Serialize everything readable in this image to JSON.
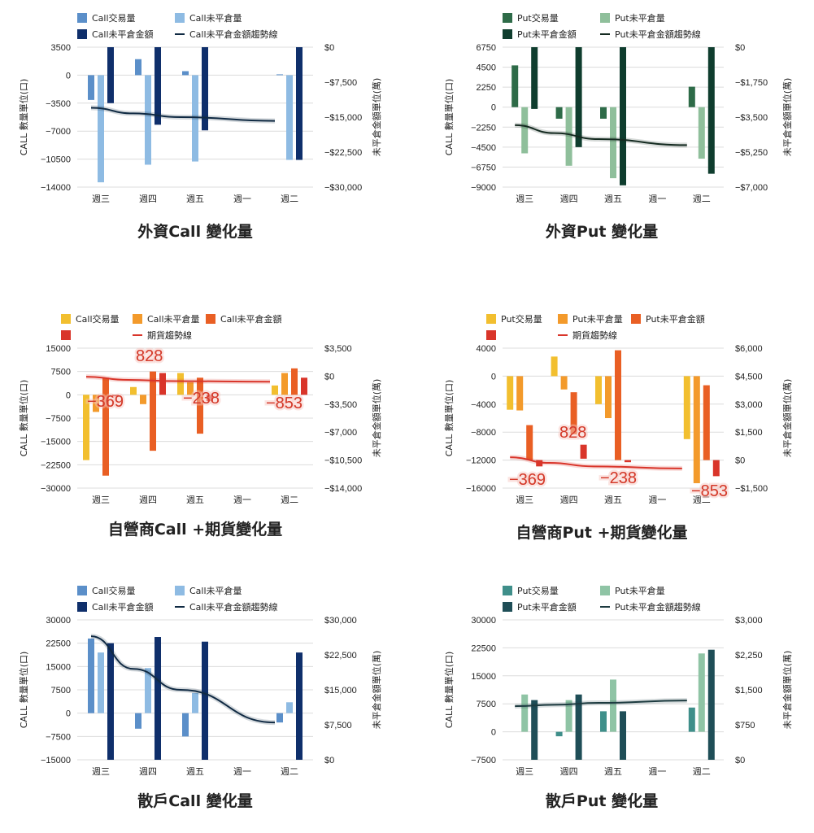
{
  "chart_data": [
    {
      "type": "bar",
      "title": "外資Call 變化量",
      "categories": [
        "週三",
        "週四",
        "週五",
        "週一",
        "週二"
      ],
      "ylabel": "CALL 數量單位(口)",
      "y2label": "未平倉金額單位(萬)",
      "ylim": [
        -14000,
        3500
      ],
      "yticks": [
        3500,
        0,
        -3500,
        -7000,
        -10500,
        -14000
      ],
      "yticklabels": [
        "3500",
        "0",
        "−3500",
        "−7000",
        "−10500",
        "−14000"
      ],
      "y2lim": [
        -30000,
        0
      ],
      "y2ticks": [
        0,
        -7500,
        -15000,
        -22500,
        -30000
      ],
      "y2ticklabels": [
        "$0",
        "−$7,500",
        "−$15,000",
        "−$22,500",
        "−$30,000"
      ],
      "legend": [
        "Call交易量",
        "Call未平倉量",
        "Call未平倉金額",
        "Call未平倉金額趨勢線"
      ],
      "series": [
        {
          "name": "Call交易量",
          "kind": "bar",
          "axis": "left",
          "color": "#5b8fc9",
          "values": [
            -3100,
            2000,
            500,
            null,
            100
          ]
        },
        {
          "name": "Call未平倉量",
          "kind": "bar",
          "axis": "left",
          "color": "#8ebbe3",
          "values": [
            -13400,
            -11200,
            -10800,
            null,
            -10600
          ]
        },
        {
          "name": "Call未平倉金額",
          "kind": "bar",
          "axis": "left",
          "color": "#0f2f6b",
          "values": [
            -3500,
            -6200,
            -6900,
            null,
            -10600
          ],
          "extend_top": true
        },
        {
          "name": "Call未平倉金額趨勢線",
          "kind": "trend",
          "axis": "right",
          "color": "#102a43",
          "values": [
            -13000,
            -14200,
            -15000,
            null,
            -15800
          ]
        }
      ]
    },
    {
      "type": "bar",
      "title": "外資Put 變化量",
      "categories": [
        "週三",
        "週四",
        "週五",
        "週一",
        "週二"
      ],
      "ylabel": "CALL 數量單位(口)",
      "y2label": "未平倉金額單位(萬)",
      "ylim": [
        -9000,
        6750
      ],
      "yticks": [
        6750,
        4500,
        2250,
        0,
        -2250,
        -4500,
        -6750,
        -9000
      ],
      "yticklabels": [
        "6750",
        "4500",
        "2250",
        "0",
        "−2250",
        "−4500",
        "−6750",
        "−9000"
      ],
      "y2lim": [
        -7000,
        0
      ],
      "y2ticks": [
        0,
        -1750,
        -3500,
        -5250,
        -7000
      ],
      "y2ticklabels": [
        "$0",
        "−$1,750",
        "−$3,500",
        "−$5,250",
        "−$7,000"
      ],
      "legend": [
        "Put交易量",
        "Put未平倉量",
        "Put未平倉金額",
        "Put未平倉金額趨勢線"
      ],
      "series": [
        {
          "name": "Put交易量",
          "kind": "bar",
          "axis": "left",
          "color": "#2e6b48",
          "values": [
            4700,
            -1300,
            -1300,
            null,
            2300
          ]
        },
        {
          "name": "Put未平倉量",
          "kind": "bar",
          "axis": "left",
          "color": "#8fbf9b",
          "values": [
            -5200,
            -6600,
            -8000,
            null,
            -5800
          ]
        },
        {
          "name": "Put未平倉金額",
          "kind": "bar",
          "axis": "left",
          "color": "#0f3d2e",
          "values": [
            -200,
            -4500,
            -8800,
            null,
            -7500
          ],
          "extend_top": true
        },
        {
          "name": "Put未平倉金額趨勢線",
          "kind": "trend",
          "axis": "right",
          "color": "#142a20",
          "values": [
            -3900,
            -4300,
            -4600,
            null,
            -4900
          ]
        }
      ]
    },
    {
      "type": "bar",
      "title": "自營商Call +期貨變化量",
      "categories": [
        "週三",
        "週四",
        "週五",
        "週一",
        "週二"
      ],
      "ylabel": "CALL 數量單位(口)",
      "y2label": "未平倉金額單位(萬)",
      "ylim": [
        -30000,
        15000
      ],
      "yticks": [
        15000,
        7500,
        0,
        -7500,
        -15000,
        -22500,
        -30000
      ],
      "yticklabels": [
        "15000",
        "7500",
        "0",
        "−7500",
        "−15000",
        "−22500",
        "−30000"
      ],
      "y2lim": [
        -14000,
        3500
      ],
      "y2ticks": [
        3500,
        0,
        -3500,
        -7000,
        -10500,
        -14000
      ],
      "y2ticklabels": [
        "$3,500",
        "$0",
        "−$3,500",
        "−$7,000",
        "−$10,500",
        "−$14,000"
      ],
      "legend": [
        "Call交易量",
        "Call未平倉量",
        "Call未平倉金額",
        "",
        "期貨趨勢線"
      ],
      "series": [
        {
          "name": "Call交易量",
          "kind": "bar",
          "axis": "left",
          "color": "#f2bf2f",
          "values": [
            -21000,
            2500,
            7000,
            null,
            3000
          ]
        },
        {
          "name": "Call未平倉量",
          "kind": "bar",
          "axis": "left",
          "color": "#f39a2b",
          "values": [
            -5500,
            -3000,
            4000,
            null,
            7000
          ]
        },
        {
          "name": "Call未平倉金額",
          "kind": "bar",
          "axis": "left",
          "color": "#e95f24",
          "values": [
            -26000,
            -18000,
            -12500,
            null,
            8500
          ],
          "top_values": [
            5500,
            7500,
            5500,
            null,
            null
          ]
        },
        {
          "name": "期貨",
          "kind": "bar",
          "axis": "left",
          "color": "#d9352a",
          "values": [
            -500,
            7000,
            -2000,
            null,
            5500
          ]
        },
        {
          "name": "期貨趨勢線",
          "kind": "trend",
          "axis": "left",
          "color": "#d9352a",
          "values": [
            5800,
            4800,
            4400,
            null,
            4200
          ]
        }
      ],
      "annotations": [
        {
          "text": "−369",
          "category": "週三",
          "value": -369
        },
        {
          "text": "828",
          "category": "週四",
          "value": 828
        },
        {
          "text": "−238",
          "category": "週五",
          "value": -238
        },
        {
          "text": "−853",
          "category": "週二",
          "value": -853
        }
      ]
    },
    {
      "type": "bar",
      "title": "自營商Put +期貨變化量",
      "categories": [
        "週三",
        "週四",
        "週五",
        "週一",
        "週二"
      ],
      "ylabel": "CALL 數量單位(口)",
      "y2label": "未平倉金額單位(萬)",
      "ylim": [
        -16000,
        4000
      ],
      "yticks": [
        4000,
        0,
        -4000,
        -8000,
        -12000,
        -16000
      ],
      "yticklabels": [
        "4000",
        "0",
        "−4000",
        "−8000",
        "−12000",
        "−16000"
      ],
      "y2lim": [
        -1500,
        6000
      ],
      "y2ticks": [
        6000,
        4500,
        3000,
        1500,
        0,
        -1500
      ],
      "y2ticklabels": [
        "$6,000",
        "$4,500",
        "$3,000",
        "$1,500",
        "$0",
        "−$1,500"
      ],
      "legend": [
        "Put交易量",
        "Put未平倉量",
        "Put未平倉金額",
        "",
        "期貨趨勢線"
      ],
      "series": [
        {
          "name": "Put交易量",
          "kind": "bar",
          "axis": "left",
          "color": "#f2bf2f",
          "values": [
            -4800,
            2800,
            -4000,
            null,
            -9000
          ]
        },
        {
          "name": "Put未平倉量",
          "kind": "bar",
          "axis": "left",
          "color": "#f39a2b",
          "values": [
            -4900,
            -1900,
            -6000,
            null,
            -15300
          ]
        },
        {
          "name": "Put未平倉金額",
          "kind": "bar",
          "axis": "left",
          "color": "#e95f24",
          "values": [
            -12000,
            -8300,
            3700,
            null,
            -12000
          ],
          "bottom_values": [
            -7000,
            -2300,
            -12000,
            null,
            -1300
          ]
        },
        {
          "name": "期貨",
          "kind": "bar",
          "axis": "left",
          "color": "#d9352a",
          "values": [
            -12900,
            -11800,
            -12300,
            null,
            -14300
          ],
          "bottom_values": [
            -12000,
            -9800,
            -12000,
            null,
            -12000
          ]
        },
        {
          "name": "期貨趨勢線",
          "kind": "trend",
          "axis": "left",
          "color": "#d9352a",
          "values": [
            -11600,
            -12400,
            -12900,
            null,
            -13200
          ]
        }
      ],
      "annotations": [
        {
          "text": "−369",
          "category": "週三",
          "value": -369
        },
        {
          "text": "828",
          "category": "週四",
          "value": 828
        },
        {
          "text": "−238",
          "category": "週五",
          "value": -238
        },
        {
          "text": "−853",
          "category": "週二",
          "value": -853
        }
      ]
    },
    {
      "type": "bar",
      "title": "散戶Call 變化量",
      "categories": [
        "週三",
        "週四",
        "週五",
        "週一",
        "週二"
      ],
      "ylabel": "CALL 數量單位(口)",
      "y2label": "未平倉金額單位(萬)",
      "ylim": [
        -15000,
        30000
      ],
      "yticks": [
        30000,
        22500,
        15000,
        7500,
        0,
        -7500,
        -15000
      ],
      "yticklabels": [
        "30000",
        "22500",
        "15000",
        "7500",
        "0",
        "−7500",
        "−15000"
      ],
      "y2lim": [
        0,
        30000
      ],
      "y2ticks": [
        30000,
        22500,
        15000,
        7500,
        0
      ],
      "y2ticklabels": [
        "$30,000",
        "$22,500",
        "$15,000",
        "$7,500",
        "$0"
      ],
      "legend": [
        "Call交易量",
        "Call未平倉量",
        "Call未平倉金額",
        "Call未平倉金額趨勢線"
      ],
      "series": [
        {
          "name": "Call交易量",
          "kind": "bar",
          "axis": "left",
          "color": "#5b8fc9",
          "values": [
            24000,
            -5000,
            -7500,
            null,
            -3000
          ]
        },
        {
          "name": "Call未平倉量",
          "kind": "bar",
          "axis": "left",
          "color": "#8ebbe3",
          "values": [
            19500,
            14500,
            6500,
            null,
            3500
          ]
        },
        {
          "name": "Call未平倉金額",
          "kind": "bar",
          "axis": "left",
          "color": "#0f2f6b",
          "values": [
            22500,
            24500,
            23000,
            null,
            19500
          ],
          "extend_bottom": true
        },
        {
          "name": "Call未平倉金額趨勢線",
          "kind": "trend",
          "axis": "right",
          "color": "#102a43",
          "values": [
            26500,
            19500,
            15000,
            null,
            8000
          ]
        }
      ]
    },
    {
      "type": "bar",
      "title": "散戶Put 變化量",
      "categories": [
        "週三",
        "週四",
        "週五",
        "週一",
        "週二"
      ],
      "ylabel": "CALL 數量單位(口)",
      "y2label": "未平倉金額單位(萬)",
      "ylim": [
        -7500,
        30000
      ],
      "yticks": [
        30000,
        22500,
        15000,
        7500,
        0,
        -7500
      ],
      "yticklabels": [
        "30000",
        "22500",
        "15000",
        "7500",
        "0",
        "−7500"
      ],
      "y2lim": [
        0,
        3000
      ],
      "y2ticks": [
        3000,
        2250,
        1500,
        750,
        0
      ],
      "y2ticklabels": [
        "$3,000",
        "$2,250",
        "$1,500",
        "$750",
        "$0"
      ],
      "legend": [
        "Put交易量",
        "Put未平倉量",
        "Put未平倉金額",
        "Put未平倉金額趨勢線"
      ],
      "series": [
        {
          "name": "Put交易量",
          "kind": "bar",
          "axis": "left",
          "color": "#3f8f8a",
          "values": [
            null,
            -1200,
            5500,
            null,
            6500
          ]
        },
        {
          "name": "Put未平倉量",
          "kind": "bar",
          "axis": "left",
          "color": "#8fc4a5",
          "values": [
            10000,
            8500,
            14000,
            null,
            21000
          ]
        },
        {
          "name": "Put未平倉金額",
          "kind": "bar",
          "axis": "left",
          "color": "#1f4e57",
          "values": [
            8500,
            10000,
            5500,
            null,
            22000
          ],
          "extend_bottom": true
        },
        {
          "name": "Put未平倉金額趨勢線",
          "kind": "trend",
          "axis": "right",
          "color": "#1d3b40",
          "values": [
            1150,
            1180,
            1220,
            null,
            1270
          ]
        }
      ]
    }
  ]
}
